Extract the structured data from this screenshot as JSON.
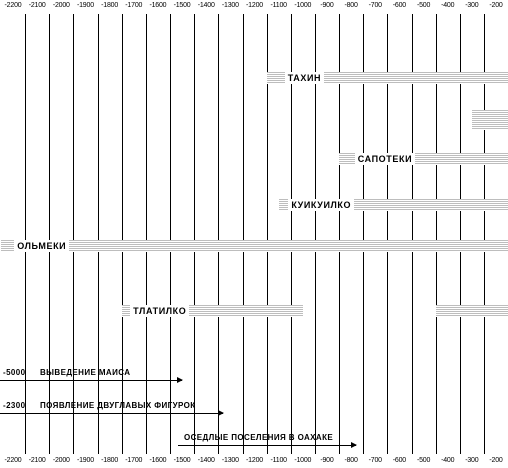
{
  "axis": {
    "ticks": [
      "-2200",
      "-2100",
      "-2000",
      "-1900",
      "-1800",
      "-1700",
      "-1600",
      "-1500",
      "-1400",
      "-1300",
      "-1200",
      "-1100",
      "-1000",
      "-900",
      "-800",
      "-700",
      "-600",
      "-500",
      "-400",
      "-300",
      "-200"
    ]
  },
  "cultures": [
    {
      "name": "ТАХИН",
      "start": -1100,
      "end": -200,
      "label_at": -1050
    },
    {
      "name": "",
      "start": -250,
      "end": -200
    },
    {
      "name": "САПОТЕКИ",
      "start": -800,
      "end": -200,
      "label_at": -760
    },
    {
      "name": "КУИКУИЛКО",
      "start": -1050,
      "end": -200,
      "label_at": -1035
    },
    {
      "name": "ОЛЬМЕКИ",
      "start": -2200,
      "end": -200,
      "label_at": -2170
    },
    {
      "name": "ТЛАТИЛКО",
      "start": -1700,
      "end": -1050,
      "label_at": -1690
    },
    {
      "name": "",
      "start": -400,
      "end": -200
    }
  ],
  "events": [
    {
      "year_label": "-5000",
      "text": "ВЫВЕДЕНИЕ МАИСА",
      "arrow_to": -1450
    },
    {
      "year_label": "-2300",
      "text": "ПОЯВЛЕНИЕ ДВУГЛАВЫХ ФИГУРОК",
      "arrow_to": -1280
    },
    {
      "year_label": "",
      "text": "ОСЕДЛЫЕ ПОСЕЛЕНИЯ В ОАХАКЕ",
      "arrow_to": -730
    }
  ]
}
